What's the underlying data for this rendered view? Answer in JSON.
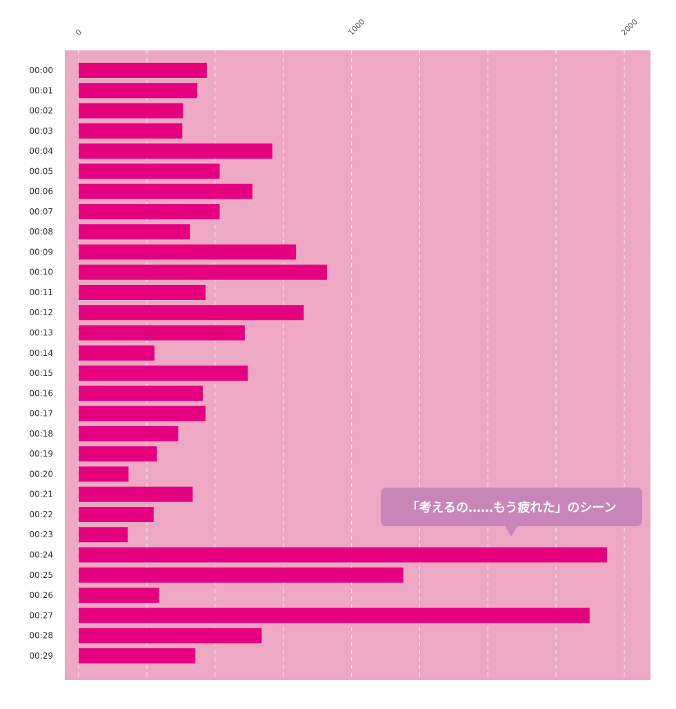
{
  "chart_data": {
    "type": "bar",
    "orientation": "horizontal",
    "title": "",
    "xlabel": "",
    "ylabel": "",
    "xlim": [
      0,
      2000
    ],
    "xticks": [
      0,
      1000,
      2000
    ],
    "grid": "vertical dashed",
    "legend": "none",
    "categories": [
      "00:00",
      "00:01",
      "00:02",
      "00:03",
      "00:04",
      "00:05",
      "00:06",
      "00:07",
      "00:08",
      "00:09",
      "00:10",
      "00:11",
      "00:12",
      "00:13",
      "00:14",
      "00:15",
      "00:16",
      "00:17",
      "00:18",
      "00:19",
      "00:20",
      "00:21",
      "00:22",
      "00:23",
      "00:24",
      "00:25",
      "00:26",
      "00:27",
      "00:28",
      "00:29"
    ],
    "values": [
      470,
      435,
      383,
      380,
      710,
      517,
      637,
      517,
      408,
      797,
      910,
      465,
      825,
      609,
      278,
      620,
      455,
      465,
      365,
      287,
      183,
      418,
      275,
      180,
      1937,
      1190,
      295,
      1873,
      671,
      428
    ],
    "annotation": {
      "text": "「考えるの……もう疲れた」のシーン",
      "category": "00:24"
    },
    "colors": {
      "plot_background": "#eda9c4",
      "bar": "#e5007f",
      "grid": "#ffffff",
      "callout": "#c886b8"
    }
  }
}
